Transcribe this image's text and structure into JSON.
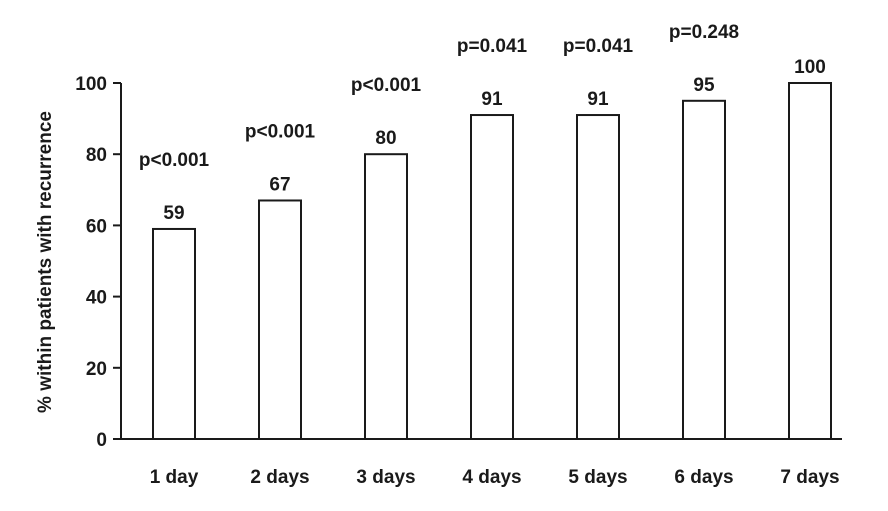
{
  "chart_data": {
    "type": "bar",
    "title": "",
    "xlabel": "",
    "ylabel": "% within patients with recurrence",
    "ylim": [
      0,
      100
    ],
    "yticks": [
      0,
      20,
      40,
      60,
      80,
      100
    ],
    "categories": [
      "1 day",
      "2 days",
      "3 days",
      "4 days",
      "5 days",
      "6 days",
      "7 days"
    ],
    "values": [
      59,
      67,
      80,
      91,
      91,
      95,
      100
    ],
    "value_labels": [
      "59",
      "67",
      "80",
      "91",
      "91",
      "95",
      "100"
    ],
    "p_values": [
      "p<0.001",
      "p<0.001",
      "p<0.001",
      "p=0.041",
      "p=0.041",
      "p=0.248",
      ""
    ],
    "grid": false,
    "legend": "none",
    "colors": {
      "bar_fill": "#ffffff",
      "bar_stroke": "#1a1a1a",
      "text": "#1a1a1a"
    }
  }
}
